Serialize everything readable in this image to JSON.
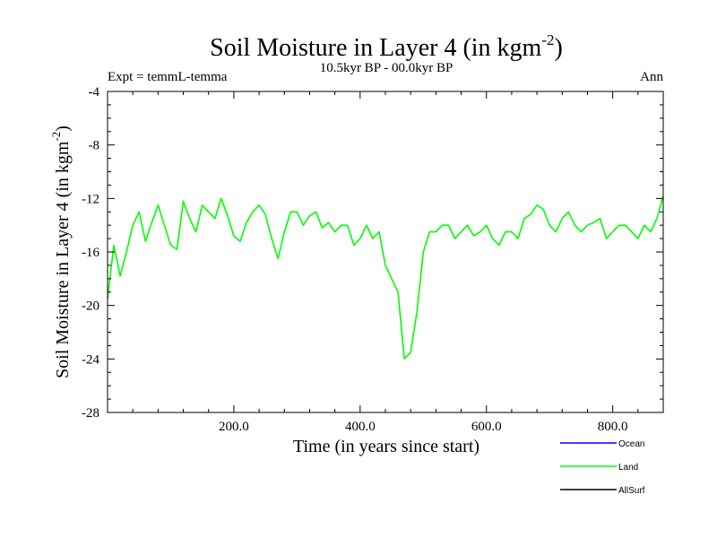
{
  "chart_data": {
    "type": "line",
    "title": "Soil Moisture in Layer 4 (in kgm",
    "title_sup": "-2",
    "title_close": ")",
    "subtitle": "10.5kyr BP - 00.0kyr BP",
    "expt_label": "Expt = temmL-temma",
    "season_label": "Ann",
    "xlabel": "Time (in years since start)",
    "ylabel": "Soil Moisture in Layer 4 (in kgm",
    "ylabel_sup": "-2",
    "ylabel_close": ")",
    "xlim": [
      0,
      880
    ],
    "ylim": [
      -28,
      -4
    ],
    "x_ticks": [
      200,
      400,
      600,
      800
    ],
    "x_tick_labels": [
      "200.0",
      "400.0",
      "600.0",
      "800.0"
    ],
    "y_ticks": [
      -4,
      -8,
      -12,
      -16,
      -20,
      -24,
      -28
    ],
    "y_tick_labels": [
      "-4",
      "-8",
      "-12",
      "-16",
      "-20",
      "-24",
      "-28"
    ],
    "legend": [
      {
        "name": "Ocean",
        "color": "#0000ff"
      },
      {
        "name": "Land",
        "color": "#00ff00"
      },
      {
        "name": "AllSurf",
        "color": "#000000"
      }
    ],
    "series": [
      {
        "name": "Land",
        "color": "#00ff00",
        "x_start": 0,
        "x_step": 10,
        "values": [
          -19.5,
          -15.5,
          -17.8,
          -16.0,
          -14.0,
          -13.0,
          -15.2,
          -13.8,
          -12.5,
          -14.0,
          -15.5,
          -15.8,
          -12.2,
          -13.5,
          -14.5,
          -12.5,
          -13.0,
          -13.5,
          -12.0,
          -13.3,
          -14.8,
          -15.2,
          -13.8,
          -13.0,
          -12.5,
          -13.2,
          -15.0,
          -16.5,
          -14.5,
          -13.0,
          -13.0,
          -14.0,
          -13.3,
          -13.0,
          -14.2,
          -13.8,
          -14.5,
          -14.0,
          -14.0,
          -15.5,
          -15.0,
          -14.0,
          -15.0,
          -14.5,
          -17.0,
          -18.0,
          -19.0,
          -24.0,
          -23.5,
          -20.5,
          -16.0,
          -14.5,
          -14.5,
          -14.0,
          -14.0,
          -15.0,
          -14.5,
          -14.0,
          -14.8,
          -14.5,
          -14.0,
          -15.0,
          -15.5,
          -14.5,
          -14.5,
          -15.0,
          -13.5,
          -13.2,
          -12.5,
          -12.8,
          -14.0,
          -14.5,
          -13.5,
          -13.0,
          -14.0,
          -14.5,
          -14.0,
          -13.8,
          -13.5,
          -15.0,
          -14.5,
          -14.0,
          -14.0,
          -14.5,
          -15.0,
          -14.0,
          -14.5,
          -13.5,
          -11.8
        ]
      }
    ]
  }
}
